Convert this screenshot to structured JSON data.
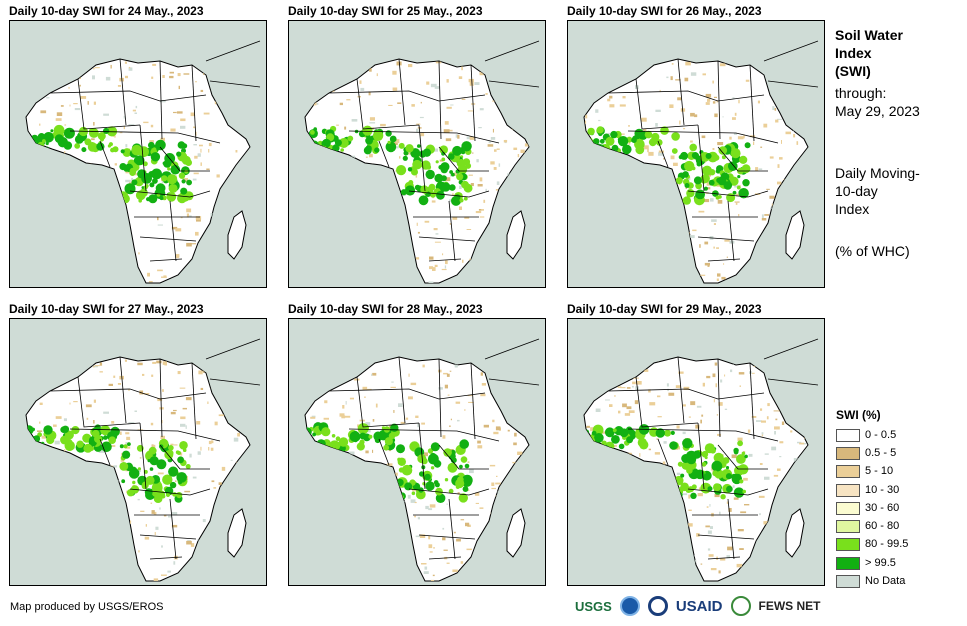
{
  "panels": [
    {
      "title": "Daily 10-day  SWI for 24 May., 2023",
      "wet_level": 1.0
    },
    {
      "title": "Daily 10-day  SWI for 25 May., 2023",
      "wet_level": 0.95
    },
    {
      "title": "Daily 10-day  SWI for 26 May., 2023",
      "wet_level": 0.9
    },
    {
      "title": "Daily 10-day  SWI for 27 May., 2023",
      "wet_level": 0.85
    },
    {
      "title": "Daily 10-day  SWI for 28 May., 2023",
      "wet_level": 0.8
    },
    {
      "title": "Daily 10-day  SWI for 29 May., 2023",
      "wet_level": 0.78
    }
  ],
  "info": {
    "title_line1": "Soil Water",
    "title_line2": "Index",
    "title_line3": "(SWI)",
    "through_label": "through:",
    "through_date": "May 29, 2023",
    "index_line1": "Daily Moving-",
    "index_line2": "10-day",
    "index_line3": "Index",
    "units": "(% of WHC)"
  },
  "legend": {
    "title": "SWI (%)",
    "items": [
      {
        "label": "0 - 0.5",
        "color": "#ffffff"
      },
      {
        "label": "0.5 - 5",
        "color": "#d8b87c"
      },
      {
        "label": "5 - 10",
        "color": "#ebcf98"
      },
      {
        "label": "10 - 30",
        "color": "#f7e4c3"
      },
      {
        "label": "30 - 60",
        "color": "#fbfcd1"
      },
      {
        "label": "60 - 80",
        "color": "#e0f7a0"
      },
      {
        "label": "80 - 99.5",
        "color": "#79e01c"
      },
      {
        "label": "> 99.5",
        "color": "#12b012"
      },
      {
        "label": "No Data",
        "color": "#cfdcd6"
      }
    ]
  },
  "footer": {
    "credit": "Map produced by USGS/EROS"
  },
  "logos": {
    "usgs": "USGS",
    "usaid": "USAID",
    "fews": "FEWS NET"
  },
  "colors": {
    "ocean": "#cfdcd6",
    "land": "#ffffff",
    "wet": "#12b012",
    "moist": "#79e01c",
    "dry": "#ebcf98",
    "nodata": "#cfdcd6"
  }
}
